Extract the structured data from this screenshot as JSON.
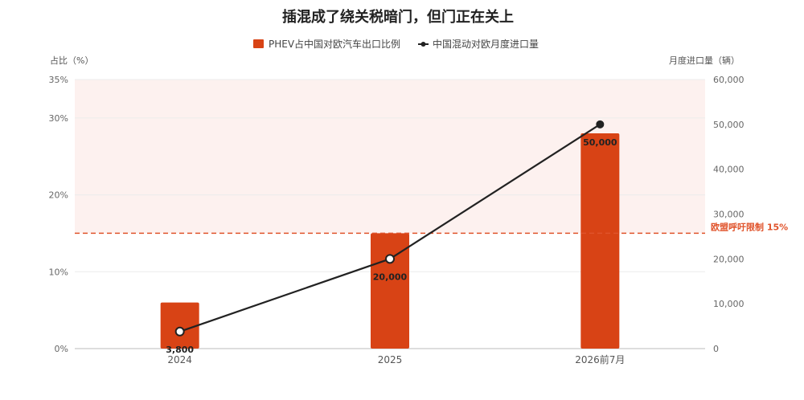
{
  "chart_data": {
    "type": "bar",
    "title": "插混成了绕关税暗门，但门正在关上",
    "categories": [
      "2024",
      "2025",
      "2026前7月"
    ],
    "series": [
      {
        "name": "PHEV占中国对欧汽车出口比例",
        "type": "bar",
        "axis": "left",
        "values": [
          6,
          15,
          28
        ]
      },
      {
        "name": "中国混动对欧月度进口量",
        "type": "line",
        "axis": "right",
        "values": [
          3800,
          20000,
          50000
        ],
        "labels": [
          "3,800",
          "20,000",
          "50,000"
        ]
      }
    ],
    "ylabel_left": "占比（%）",
    "ylabel_right": "月度进口量（辆）",
    "ylim_left": [
      0,
      35
    ],
    "ylim_right": [
      0,
      60000
    ],
    "yticks_left": [
      "0%",
      "10%",
      "20%",
      "30%",
      "35%"
    ],
    "yticks_right": [
      "0",
      "10,000",
      "20,000",
      "30,000",
      "40,000",
      "50,000",
      "60,000"
    ],
    "reference_line": {
      "axis": "left",
      "value": 15,
      "label": "欧盟呼吁限制 15%"
    },
    "shaded_band": {
      "axis": "left",
      "from": 15,
      "to": 35
    },
    "legend_position": "top",
    "grid": true,
    "colors": {
      "bar": "#d84315",
      "line": "#222222",
      "reference": "#e0532b",
      "band": "#fdf1ef"
    }
  }
}
